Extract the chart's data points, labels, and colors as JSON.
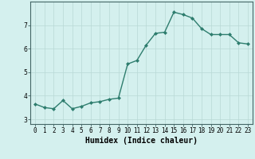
{
  "x": [
    0,
    1,
    2,
    3,
    4,
    5,
    6,
    7,
    8,
    9,
    10,
    11,
    12,
    13,
    14,
    15,
    16,
    17,
    18,
    19,
    20,
    21,
    22,
    23
  ],
  "y": [
    3.65,
    3.5,
    3.45,
    3.8,
    3.45,
    3.55,
    3.7,
    3.75,
    3.85,
    3.9,
    5.35,
    5.5,
    6.15,
    6.65,
    6.7,
    7.55,
    7.45,
    7.3,
    6.85,
    6.6,
    6.6,
    6.6,
    6.25,
    6.2
  ],
  "line_color": "#2e7d6e",
  "marker": "D",
  "marker_size": 2,
  "linewidth": 1.0,
  "xlabel": "Humidex (Indice chaleur)",
  "xlabel_fontsize": 7,
  "ylim": [
    2.8,
    8.0
  ],
  "xlim": [
    -0.5,
    23.5
  ],
  "yticks": [
    3,
    4,
    5,
    6,
    7
  ],
  "xticks": [
    0,
    1,
    2,
    3,
    4,
    5,
    6,
    7,
    8,
    9,
    10,
    11,
    12,
    13,
    14,
    15,
    16,
    17,
    18,
    19,
    20,
    21,
    22,
    23
  ],
  "xtick_labels": [
    "0",
    "1",
    "2",
    "3",
    "4",
    "5",
    "6",
    "7",
    "8",
    "9",
    "10",
    "11",
    "12",
    "13",
    "14",
    "15",
    "16",
    "17",
    "18",
    "19",
    "20",
    "21",
    "22",
    "23"
  ],
  "background_color": "#d4f0ee",
  "grid_color": "#b8d8d5",
  "tick_fontsize": 5.5,
  "ylabel_fontsize": 6
}
